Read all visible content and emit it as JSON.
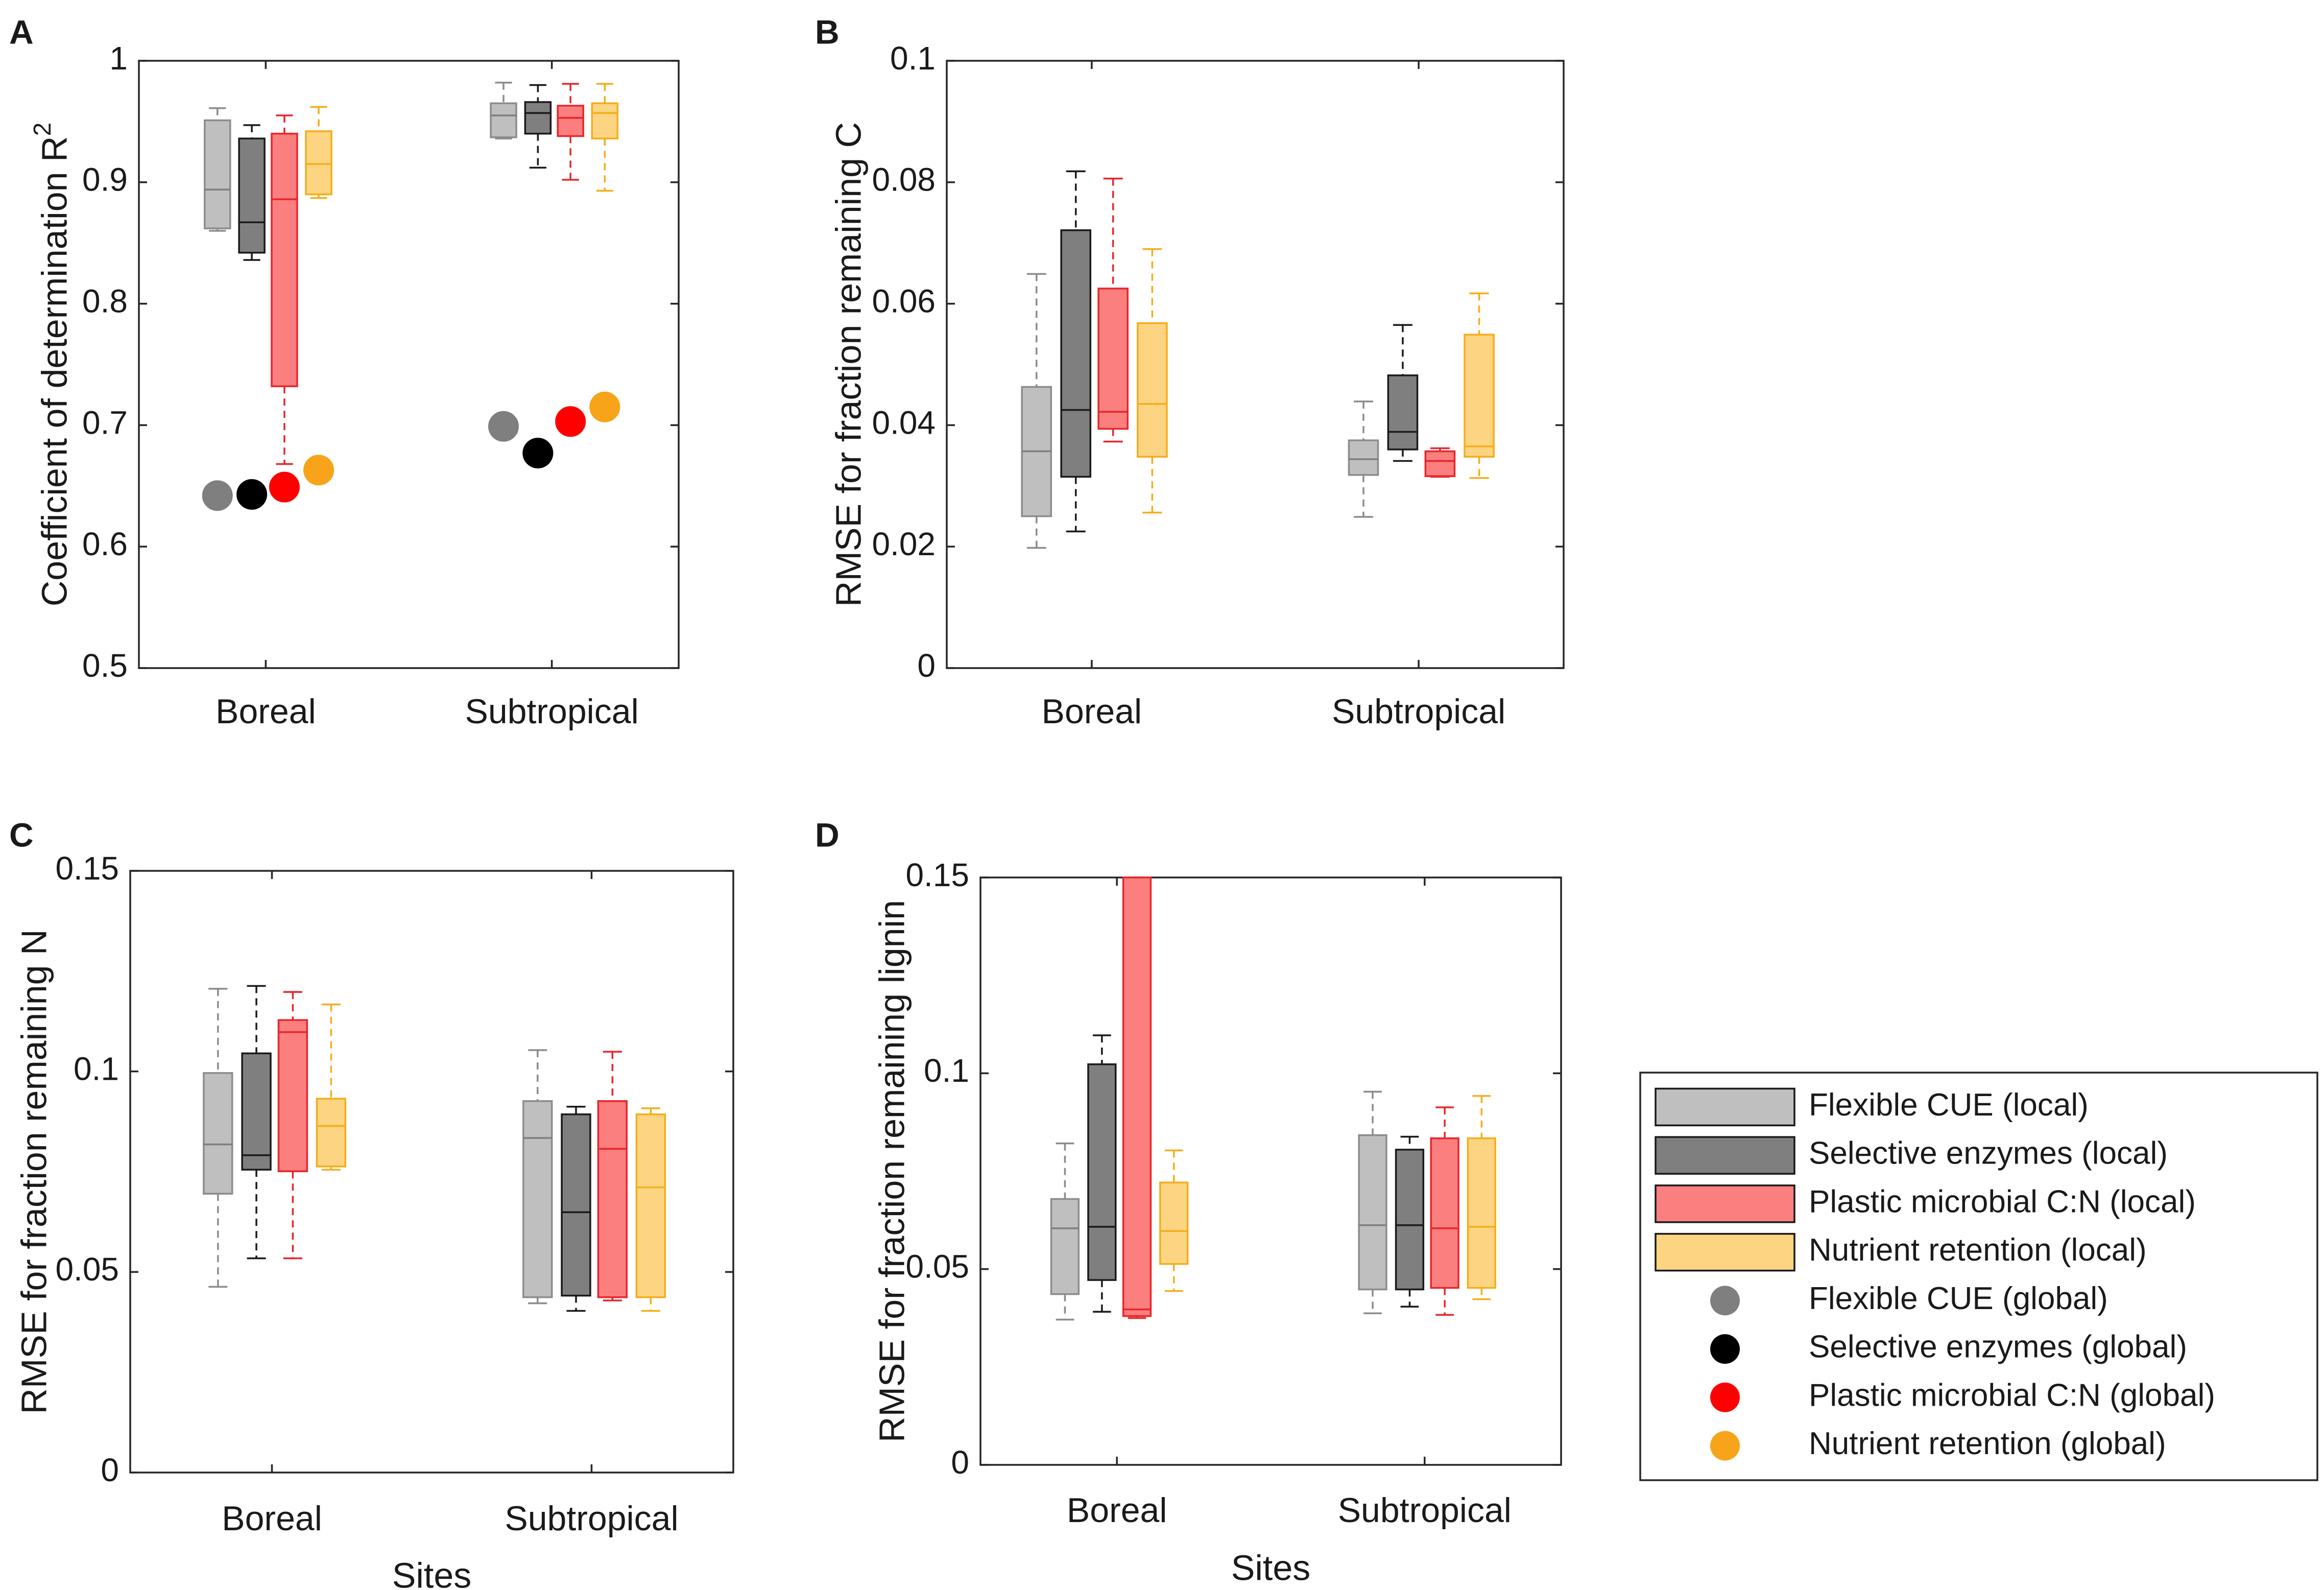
{
  "series_styles": [
    {
      "name": "Flexible CUE",
      "fill": "#bfbfbf",
      "stroke": "#8c8c8c",
      "median": "#7f7f7f",
      "whisker": "#8c8c8c",
      "dot": "#7f7f7f"
    },
    {
      "name": "Selective enzymes",
      "fill": "#7f7f7f",
      "stroke": "#1a1a1a",
      "median": "#1a1a1a",
      "whisker": "#1a1a1a",
      "dot": "#000000"
    },
    {
      "name": "Plastic microbial C:N",
      "fill": "#fc7f7f",
      "stroke": "#e8262b",
      "median": "#e8262b",
      "whisker": "#e8262b",
      "dot": "#ff0000"
    },
    {
      "name": "Nutrient retention",
      "fill": "#fdd582",
      "stroke": "#f4ad1c",
      "median": "#f4ad1c",
      "whisker": "#f4ad1c",
      "dot": "#f7a41a"
    }
  ],
  "chart_data": [
    {
      "panel": "A",
      "type": "box",
      "ylabel": "Coefficient of determination R",
      "ylabel_superscript": "2",
      "xlabel": "",
      "categories": [
        "Boreal",
        "Subtropical"
      ],
      "ylim": [
        0.5,
        1.0
      ],
      "yticks": [
        0.5,
        0.6,
        0.7,
        0.8,
        0.9,
        1.0
      ],
      "ytick_labels": [
        "0.5",
        "0.6",
        "0.7",
        "0.8",
        "0.9",
        "1"
      ],
      "boxes": [
        [
          {
            "min": 0.86,
            "q1": 0.862,
            "median": 0.894,
            "q3": 0.951,
            "max": 0.961
          },
          {
            "min": 0.836,
            "q1": 0.842,
            "median": 0.867,
            "q3": 0.936,
            "max": 0.947
          },
          {
            "min": 0.668,
            "q1": 0.732,
            "median": 0.886,
            "q3": 0.94,
            "max": 0.955
          },
          {
            "min": 0.887,
            "q1": 0.89,
            "median": 0.915,
            "q3": 0.942,
            "max": 0.962
          }
        ],
        [
          {
            "min": 0.936,
            "q1": 0.937,
            "median": 0.955,
            "q3": 0.965,
            "max": 0.982
          },
          {
            "min": 0.912,
            "q1": 0.94,
            "median": 0.957,
            "q3": 0.966,
            "max": 0.98
          },
          {
            "min": 0.902,
            "q1": 0.938,
            "median": 0.953,
            "q3": 0.963,
            "max": 0.981
          },
          {
            "min": 0.893,
            "q1": 0.936,
            "median": 0.957,
            "q3": 0.965,
            "max": 0.981
          }
        ]
      ],
      "global_points": [
        [
          0.642,
          0.643,
          0.649,
          0.663
        ],
        [
          0.699,
          0.677,
          0.703,
          0.715
        ]
      ]
    },
    {
      "panel": "B",
      "type": "box",
      "ylabel": "RMSE for fraction remaining C",
      "xlabel": "",
      "categories": [
        "Boreal",
        "Subtropical"
      ],
      "ylim": [
        0,
        0.1
      ],
      "yticks": [
        0,
        0.02,
        0.04,
        0.06,
        0.08,
        0.1
      ],
      "ytick_labels": [
        "0",
        "0.02",
        "0.04",
        "0.06",
        "0.08",
        "0.1"
      ],
      "boxes": [
        [
          {
            "min": 0.0198,
            "q1": 0.025,
            "median": 0.0357,
            "q3": 0.0463,
            "max": 0.0649
          },
          {
            "min": 0.0225,
            "q1": 0.0315,
            "median": 0.0425,
            "q3": 0.0721,
            "max": 0.0818
          },
          {
            "min": 0.0373,
            "q1": 0.0394,
            "median": 0.0422,
            "q3": 0.0625,
            "max": 0.0806
          },
          {
            "min": 0.0256,
            "q1": 0.0348,
            "median": 0.0435,
            "q3": 0.0568,
            "max": 0.069
          }
        ],
        [
          {
            "min": 0.0249,
            "q1": 0.0318,
            "median": 0.0344,
            "q3": 0.0375,
            "max": 0.0439
          },
          {
            "min": 0.0341,
            "q1": 0.036,
            "median": 0.0389,
            "q3": 0.0482,
            "max": 0.0565
          },
          {
            "min": 0.0315,
            "q1": 0.0316,
            "median": 0.0341,
            "q3": 0.0357,
            "max": 0.0362
          },
          {
            "min": 0.0313,
            "q1": 0.0348,
            "median": 0.0365,
            "q3": 0.0549,
            "max": 0.0617
          }
        ]
      ]
    },
    {
      "panel": "C",
      "type": "box",
      "ylabel": "RMSE for fraction remaining N",
      "xlabel": "Sites",
      "categories": [
        "Boreal",
        "Subtropical"
      ],
      "ylim": [
        0,
        0.15
      ],
      "yticks": [
        0,
        0.05,
        0.1,
        0.15
      ],
      "ytick_labels": [
        "0",
        "0.05",
        "0.1",
        "0.15"
      ],
      "boxes": [
        [
          {
            "min": 0.0463,
            "q1": 0.0695,
            "median": 0.0818,
            "q3": 0.0996,
            "max": 0.1206
          },
          {
            "min": 0.0534,
            "q1": 0.0755,
            "median": 0.0791,
            "q3": 0.1045,
            "max": 0.1213
          },
          {
            "min": 0.0534,
            "q1": 0.0751,
            "median": 0.1098,
            "q3": 0.1128,
            "max": 0.1198
          },
          {
            "min": 0.0755,
            "q1": 0.0763,
            "median": 0.0864,
            "q3": 0.0932,
            "max": 0.1167
          }
        ],
        [
          {
            "min": 0.0422,
            "q1": 0.0437,
            "median": 0.0834,
            "q3": 0.0926,
            "max": 0.1053
          },
          {
            "min": 0.0403,
            "q1": 0.0441,
            "median": 0.0649,
            "q3": 0.0893,
            "max": 0.0912
          },
          {
            "min": 0.0429,
            "q1": 0.0437,
            "median": 0.0807,
            "q3": 0.0926,
            "max": 0.1049
          },
          {
            "min": 0.0403,
            "q1": 0.0437,
            "median": 0.0711,
            "q3": 0.0893,
            "max": 0.0908
          }
        ]
      ]
    },
    {
      "panel": "D",
      "type": "box",
      "ylabel": "RMSE for fraction remaining lignin",
      "xlabel": "Sites",
      "categories": [
        "Boreal",
        "Subtropical"
      ],
      "ylim": [
        0,
        0.15
      ],
      "yticks": [
        0,
        0.05,
        0.1,
        0.15
      ],
      "ytick_labels": [
        "0",
        "0.05",
        "0.1",
        "0.15"
      ],
      "boxes": [
        [
          {
            "min": 0.0371,
            "q1": 0.0436,
            "median": 0.0604,
            "q3": 0.0679,
            "max": 0.0821
          },
          {
            "min": 0.0391,
            "q1": 0.0472,
            "median": 0.0608,
            "q3": 0.1023,
            "max": 0.1097
          },
          {
            "min": 0.0375,
            "q1": 0.038,
            "median": 0.0397,
            "q3": 0.15,
            "max": 0.15
          },
          {
            "min": 0.0444,
            "q1": 0.0513,
            "median": 0.0597,
            "q3": 0.0721,
            "max": 0.0803
          }
        ],
        [
          {
            "min": 0.0387,
            "q1": 0.0448,
            "median": 0.0612,
            "q3": 0.0842,
            "max": 0.0953
          },
          {
            "min": 0.0404,
            "q1": 0.0448,
            "median": 0.0612,
            "q3": 0.0805,
            "max": 0.0838
          },
          {
            "min": 0.0383,
            "q1": 0.0452,
            "median": 0.0604,
            "q3": 0.0834,
            "max": 0.0913
          },
          {
            "min": 0.0423,
            "q1": 0.0452,
            "median": 0.0608,
            "q3": 0.0834,
            "max": 0.0942
          }
        ]
      ]
    }
  ],
  "legend": {
    "items": [
      {
        "label": "Flexible CUE (local)",
        "kind": "box",
        "series": 0
      },
      {
        "label": "Selective enzymes (local)",
        "kind": "box",
        "series": 1
      },
      {
        "label": "Plastic microbial C:N (local)",
        "kind": "box",
        "series": 2
      },
      {
        "label": "Nutrient retention (local)",
        "kind": "box",
        "series": 3
      },
      {
        "label": "Flexible CUE (global)",
        "kind": "dot",
        "series": 0
      },
      {
        "label": "Selective enzymes (global)",
        "kind": "dot",
        "series": 1
      },
      {
        "label": "Plastic microbial C:N (global)",
        "kind": "dot",
        "series": 2
      },
      {
        "label": "Nutrient retention (global)",
        "kind": "dot",
        "series": 3
      }
    ]
  }
}
